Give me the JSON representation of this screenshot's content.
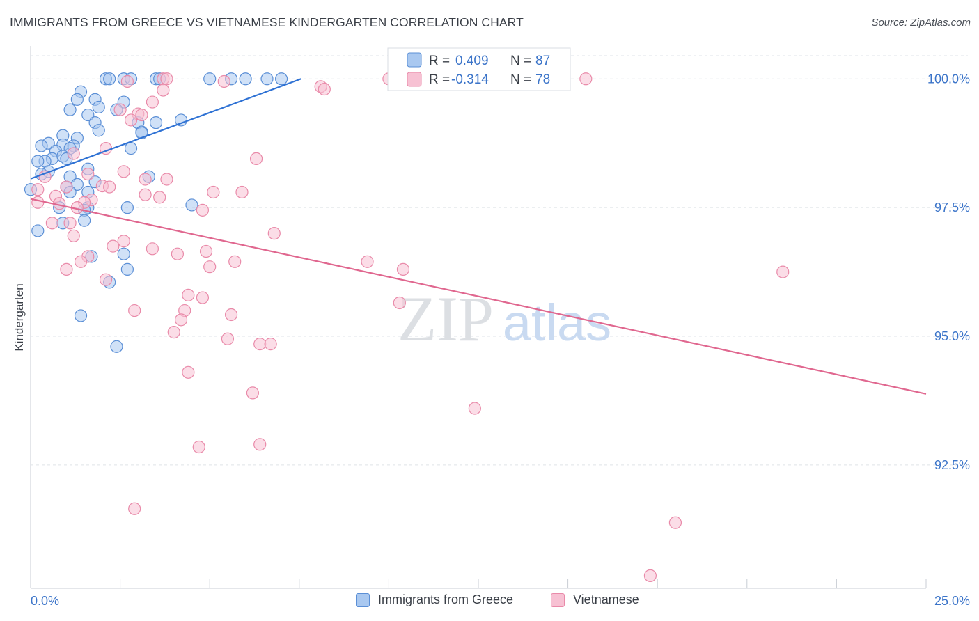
{
  "header": {
    "title": "IMMIGRANTS FROM GREECE VS VIETNAMESE KINDERGARTEN CORRELATION CHART",
    "source": "Source: ZipAtlas.com"
  },
  "watermark": {
    "zip": "ZIP",
    "atlas": "atlas"
  },
  "colors": {
    "blue_fill": "#a9c8f0",
    "blue_stroke": "#5b8fd6",
    "blue_line": "#2f72d4",
    "pink_fill": "#f7c1d3",
    "pink_stroke": "#e98aa9",
    "pink_line": "#e0678f",
    "axis_label": "#3b74c9",
    "grid": "#dfe3e8"
  },
  "chart_data": {
    "type": "scatter",
    "title": "IMMIGRANTS FROM GREECE VS VIETNAMESE KINDERGARTEN CORRELATION CHART",
    "xlabel": "",
    "ylabel": "Kindergarten",
    "xlim": [
      0,
      25
    ],
    "ylim": [
      90.2,
      100.45
    ],
    "x_tick_labels": [
      "0.0%",
      "25.0%"
    ],
    "y_ticks": [
      {
        "value": 100.0,
        "label": "100.0%"
      },
      {
        "value": 97.5,
        "label": "97.5%"
      },
      {
        "value": 95.0,
        "label": "95.0%"
      },
      {
        "value": 92.5,
        "label": "92.5%"
      }
    ],
    "grid": true,
    "legend_position": "top-center",
    "stats": [
      {
        "r_label": "R =",
        "r_value": "0.409",
        "n_label": "N =",
        "n_value": "87"
      },
      {
        "r_label": "R =",
        "r_value": "-0.314",
        "n_label": "N =",
        "n_value": "78"
      }
    ],
    "series": [
      {
        "name": "Immigrants from Greece",
        "color": "#a9c8f0",
        "trend": {
          "x": [
            0.0,
            7.55
          ],
          "y": [
            98.06,
            100.0
          ]
        },
        "points": [
          [
            2.1,
            100.0
          ],
          [
            2.2,
            100.0
          ],
          [
            2.6,
            100.0
          ],
          [
            2.8,
            100.0
          ],
          [
            3.5,
            100.0
          ],
          [
            3.6,
            100.0
          ],
          [
            5.0,
            100.0
          ],
          [
            5.6,
            100.0
          ],
          [
            6.0,
            100.0
          ],
          [
            6.6,
            100.0
          ],
          [
            7.0,
            100.0
          ],
          [
            1.4,
            99.75
          ],
          [
            1.3,
            99.6
          ],
          [
            1.8,
            99.6
          ],
          [
            2.6,
            99.55
          ],
          [
            1.9,
            99.45
          ],
          [
            1.1,
            99.4
          ],
          [
            2.4,
            99.4
          ],
          [
            1.6,
            99.3
          ],
          [
            4.2,
            99.2
          ],
          [
            3.0,
            99.15
          ],
          [
            1.8,
            99.15
          ],
          [
            3.5,
            99.15
          ],
          [
            1.9,
            99.0
          ],
          [
            3.1,
            98.97
          ],
          [
            3.1,
            98.95
          ],
          [
            0.9,
            98.9
          ],
          [
            1.3,
            98.85
          ],
          [
            0.5,
            98.75
          ],
          [
            0.9,
            98.72
          ],
          [
            0.3,
            98.7
          ],
          [
            1.2,
            98.7
          ],
          [
            0.7,
            98.6
          ],
          [
            1.1,
            98.65
          ],
          [
            2.8,
            98.65
          ],
          [
            0.6,
            98.45
          ],
          [
            0.9,
            98.5
          ],
          [
            0.4,
            98.4
          ],
          [
            0.2,
            98.4
          ],
          [
            1.0,
            98.45
          ],
          [
            0.5,
            98.2
          ],
          [
            0.3,
            98.15
          ],
          [
            1.6,
            98.25
          ],
          [
            1.1,
            98.1
          ],
          [
            3.3,
            98.1
          ],
          [
            1.8,
            98.0
          ],
          [
            1.3,
            97.95
          ],
          [
            1.0,
            97.9
          ],
          [
            0.0,
            97.85
          ],
          [
            1.1,
            97.8
          ],
          [
            1.6,
            97.8
          ],
          [
            4.5,
            97.55
          ],
          [
            2.7,
            97.5
          ],
          [
            1.6,
            97.5
          ],
          [
            0.8,
            97.5
          ],
          [
            1.5,
            97.45
          ],
          [
            1.5,
            97.25
          ],
          [
            0.9,
            97.2
          ],
          [
            0.2,
            97.05
          ],
          [
            2.6,
            96.6
          ],
          [
            1.7,
            96.55
          ],
          [
            2.7,
            96.3
          ],
          [
            2.2,
            96.05
          ],
          [
            1.4,
            95.4
          ],
          [
            2.4,
            94.8
          ]
        ]
      },
      {
        "name": "Vietnamese",
        "color": "#f7c1d3",
        "trend": {
          "x": [
            0.0,
            25.0
          ],
          "y": [
            97.67,
            93.88
          ]
        },
        "points": [
          [
            3.7,
            100.0
          ],
          [
            3.8,
            100.0
          ],
          [
            10.0,
            100.0
          ],
          [
            15.5,
            100.0
          ],
          [
            2.7,
            99.95
          ],
          [
            5.4,
            99.95
          ],
          [
            8.1,
            99.85
          ],
          [
            8.2,
            99.8
          ],
          [
            3.7,
            99.78
          ],
          [
            3.4,
            99.55
          ],
          [
            2.5,
            99.4
          ],
          [
            3.0,
            99.32
          ],
          [
            3.1,
            99.3
          ],
          [
            2.8,
            99.2
          ],
          [
            2.1,
            98.65
          ],
          [
            1.2,
            98.55
          ],
          [
            6.3,
            98.45
          ],
          [
            2.6,
            98.2
          ],
          [
            1.6,
            98.15
          ],
          [
            0.4,
            98.1
          ],
          [
            3.2,
            98.05
          ],
          [
            3.8,
            98.05
          ],
          [
            2.0,
            97.92
          ],
          [
            2.2,
            97.9
          ],
          [
            1.0,
            97.9
          ],
          [
            0.2,
            97.85
          ],
          [
            5.1,
            97.8
          ],
          [
            5.9,
            97.8
          ],
          [
            3.2,
            97.75
          ],
          [
            3.6,
            97.7
          ],
          [
            0.7,
            97.72
          ],
          [
            1.7,
            97.65
          ],
          [
            1.5,
            97.6
          ],
          [
            0.2,
            97.6
          ],
          [
            0.8,
            97.58
          ],
          [
            1.3,
            97.5
          ],
          [
            4.8,
            97.45
          ],
          [
            0.6,
            97.2
          ],
          [
            1.1,
            97.2
          ],
          [
            6.8,
            97.0
          ],
          [
            1.2,
            96.95
          ],
          [
            2.6,
            96.85
          ],
          [
            2.3,
            96.75
          ],
          [
            3.4,
            96.7
          ],
          [
            4.1,
            96.6
          ],
          [
            4.9,
            96.65
          ],
          [
            1.6,
            96.55
          ],
          [
            1.4,
            96.45
          ],
          [
            5.7,
            96.45
          ],
          [
            9.4,
            96.45
          ],
          [
            5.0,
            96.35
          ],
          [
            1.0,
            96.3
          ],
          [
            10.4,
            96.3
          ],
          [
            21.0,
            96.25
          ],
          [
            2.1,
            96.1
          ],
          [
            4.4,
            95.8
          ],
          [
            4.8,
            95.75
          ],
          [
            10.3,
            95.65
          ],
          [
            2.9,
            95.5
          ],
          [
            4.3,
            95.5
          ],
          [
            5.6,
            95.42
          ],
          [
            4.2,
            95.32
          ],
          [
            4.0,
            95.08
          ],
          [
            5.5,
            94.95
          ],
          [
            6.4,
            94.85
          ],
          [
            6.7,
            94.85
          ],
          [
            4.4,
            94.3
          ],
          [
            6.2,
            93.9
          ],
          [
            12.4,
            93.6
          ],
          [
            4.7,
            92.85
          ],
          [
            6.4,
            92.9
          ],
          [
            2.9,
            91.65
          ],
          [
            18.0,
            91.38
          ],
          [
            17.3,
            90.35
          ]
        ]
      }
    ]
  }
}
